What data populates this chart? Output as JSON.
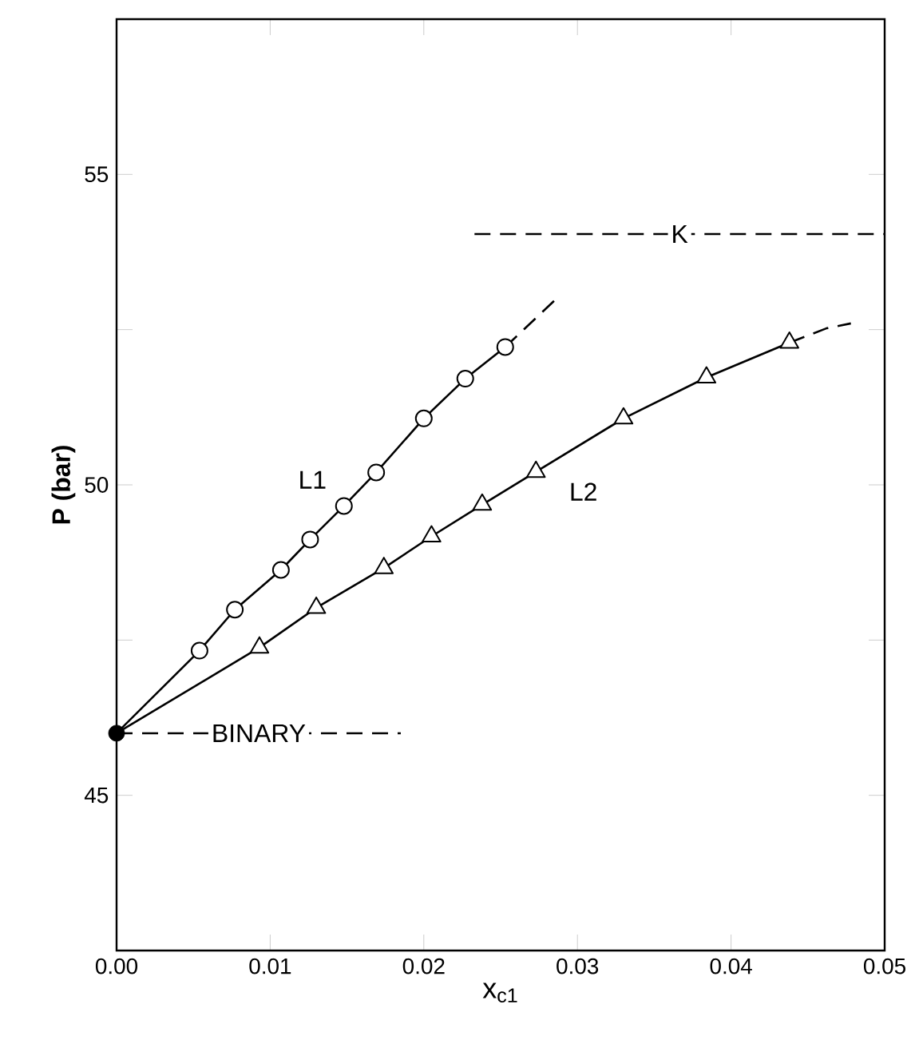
{
  "chart_data": {
    "type": "line",
    "xlabel": "x$_{c1}$",
    "ylabel": "P (bar)",
    "xlim": [
      0,
      0.05
    ],
    "ylim": [
      42.5,
      57.5
    ],
    "xticks": [
      {
        "value": 0,
        "label": "0.00"
      },
      {
        "value": 0.01,
        "label": "0.01"
      },
      {
        "value": 0.02,
        "label": "0.02"
      },
      {
        "value": 0.03,
        "label": "0.03"
      },
      {
        "value": 0.04,
        "label": "0.04"
      },
      {
        "value": 0.05,
        "label": "0.05"
      }
    ],
    "yticks": [
      45,
      {
        "value": 47.5,
        "label": null
      },
      50,
      {
        "value": 52.5,
        "label": null
      },
      55
    ],
    "grid": false,
    "series": [
      {
        "name": "L1",
        "color": "#000000",
        "marker": "circle",
        "line_style": "solid",
        "x": [
          0,
          0.0054,
          0.0077,
          0.0107,
          0.0126,
          0.0148,
          0.0169,
          0.02,
          0.0227,
          0.0253
        ],
        "values": [
          46.0,
          47.33,
          47.99,
          48.63,
          49.12,
          49.66,
          50.2,
          51.07,
          51.71,
          52.22
        ]
      },
      {
        "color": "#000000",
        "marker": "none",
        "line_style": "dashed",
        "x": [
          0.0253,
          0.0286
        ],
        "values": [
          52.22,
          52.99
        ]
      },
      {
        "name": "L2",
        "color": "#000000",
        "marker": "triangle",
        "line_style": "solid",
        "x": [
          0,
          0.0093,
          0.013,
          0.0174,
          0.0205,
          0.0238,
          0.0273,
          0.033,
          0.0384,
          0.0438
        ],
        "values": [
          46.0,
          47.38,
          48.02,
          48.66,
          49.17,
          49.68,
          50.21,
          51.07,
          51.73,
          52.29
        ]
      },
      {
        "color": "#000000",
        "marker": "none",
        "line_style": "dashed",
        "x": [
          0.0438,
          0.0462,
          0.0478
        ],
        "values": [
          52.29,
          52.52,
          52.6
        ]
      },
      {
        "name": "BINARY",
        "color": "#000000",
        "marker": "none",
        "line_style": "dashed",
        "x": [
          0,
          0.0185
        ],
        "values": [
          46.0,
          46.0
        ]
      },
      {
        "name": "K",
        "color": "#000000",
        "marker": "none",
        "line_style": "dashed",
        "x": [
          0.0233,
          0.05
        ],
        "values": [
          54.04,
          54.04
        ]
      },
      {
        "type": "scatter",
        "color": "#000000",
        "marker": "circle",
        "x": [
          0
        ],
        "values": [
          46.0
        ]
      }
    ]
  }
}
